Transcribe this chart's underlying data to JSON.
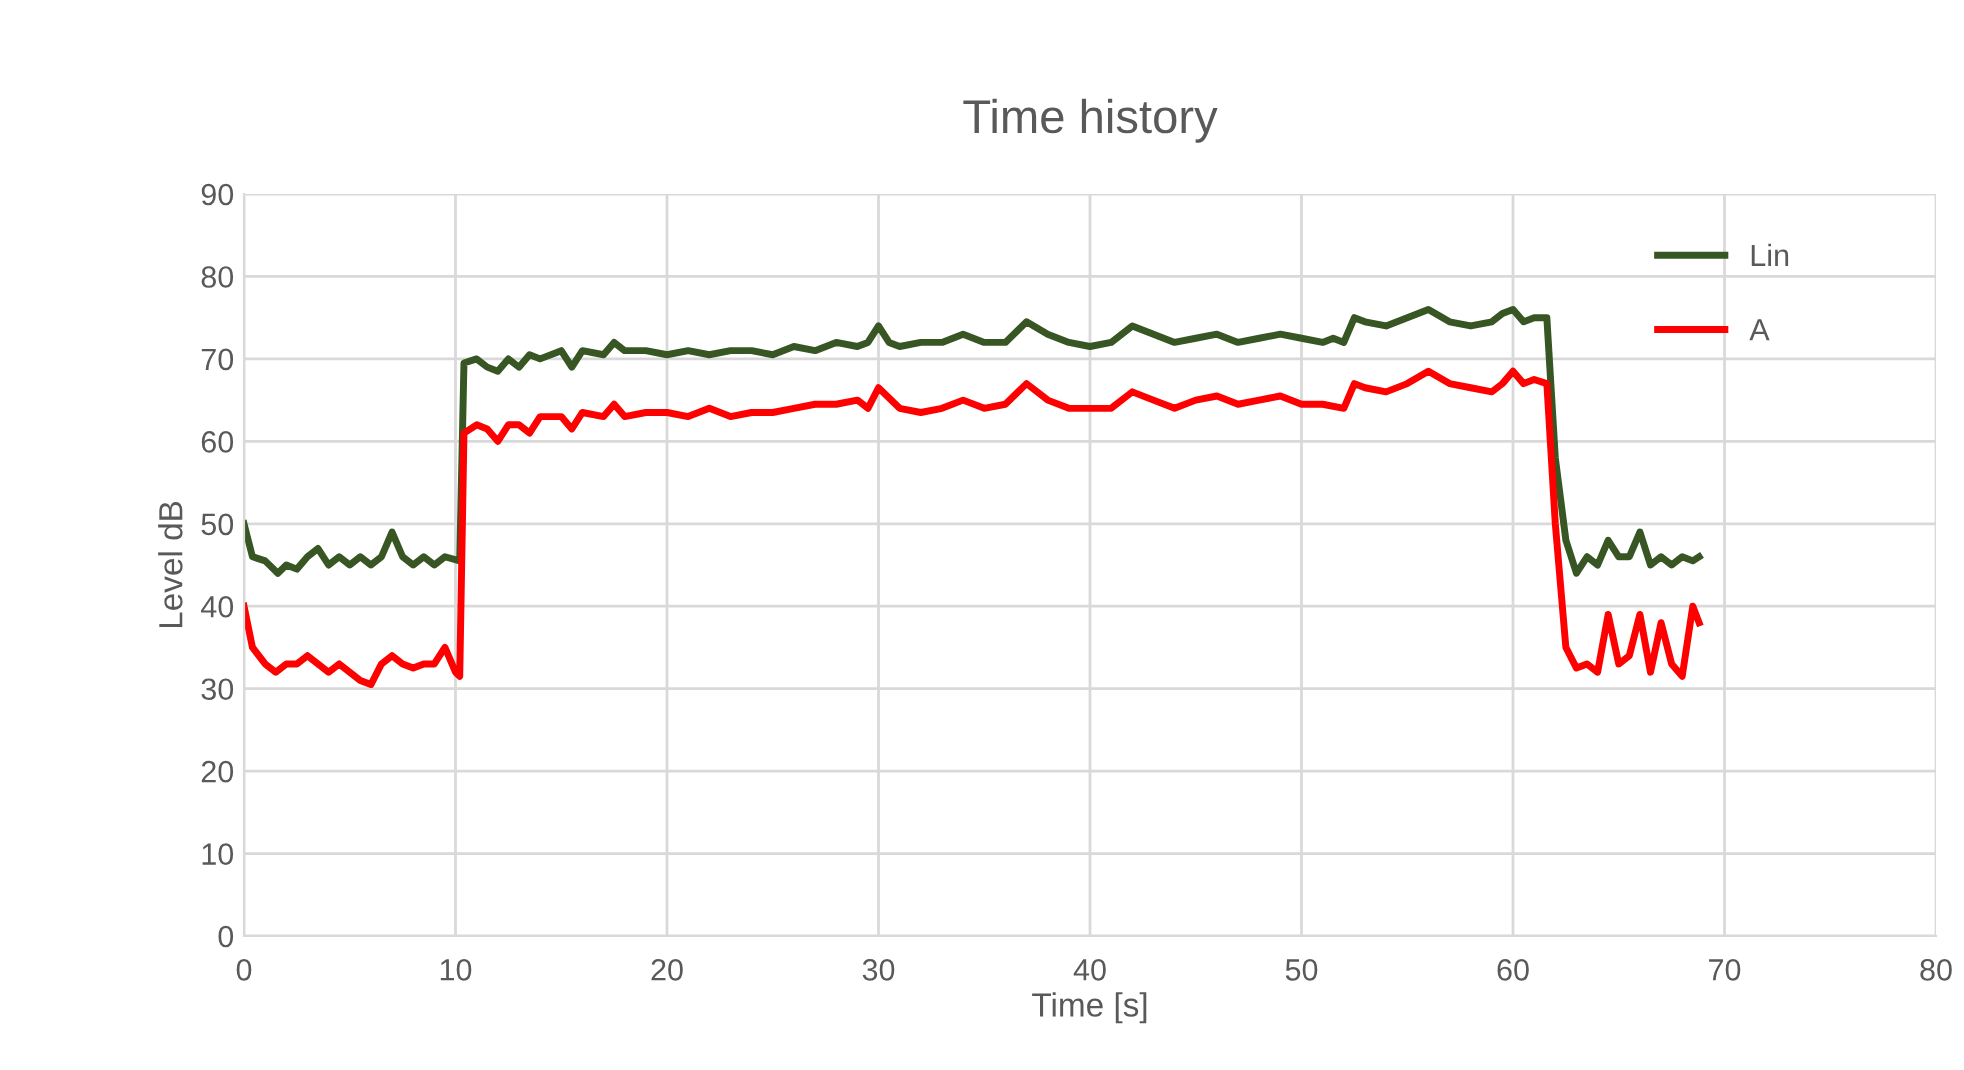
{
  "chart_data": {
    "type": "line",
    "title": "Time history",
    "xlabel": "Time [s]",
    "ylabel": "Level dB",
    "xlim": [
      0,
      80
    ],
    "xticks": [
      0,
      10,
      20,
      30,
      40,
      50,
      60,
      70,
      80
    ],
    "ylim": [
      0,
      90
    ],
    "yticks": [
      0,
      10,
      20,
      30,
      40,
      50,
      60,
      70,
      80,
      90
    ],
    "grid": true,
    "legend": "top right",
    "line_style": "solid",
    "marker": "none",
    "series": [
      {
        "name": "Lin",
        "color": "#375623",
        "x": [
          0,
          0.4,
          1,
          1.6,
          2,
          2.5,
          3,
          3.5,
          4,
          4.5,
          5,
          5.5,
          6,
          6.5,
          7,
          7.5,
          8,
          8.5,
          9,
          9.5,
          10.2,
          10.4,
          11,
          11.5,
          12,
          12.5,
          13,
          13.5,
          14,
          15,
          15.5,
          16,
          17,
          17.5,
          18,
          19,
          20,
          21,
          22,
          23,
          24,
          25,
          26,
          27,
          28,
          29,
          29.5,
          30,
          30.5,
          31,
          32,
          33,
          34,
          35,
          36,
          37,
          38,
          39,
          40,
          41,
          42,
          43,
          44,
          45,
          46,
          47,
          48,
          49,
          50,
          51,
          51.5,
          52,
          52.5,
          53,
          54,
          55,
          56,
          57,
          58,
          59,
          59.5,
          60,
          60.5,
          61,
          61.6,
          62,
          62.5,
          63,
          63.5,
          64,
          64.5,
          65,
          65.5,
          66,
          66.5,
          67,
          67.5,
          68,
          68.5,
          68.8
        ],
        "values": [
          50,
          46,
          45.5,
          44,
          45,
          44.5,
          46,
          47,
          45,
          46,
          45,
          46,
          45,
          46,
          49,
          46,
          45,
          46,
          45,
          46,
          45.5,
          69.5,
          70,
          69,
          68.5,
          70,
          69,
          70.5,
          70,
          71,
          69,
          71,
          70.5,
          72,
          71,
          71,
          70.5,
          71,
          70.5,
          71,
          71,
          70.5,
          71.5,
          71,
          72,
          71.5,
          72,
          74,
          72,
          71.5,
          72,
          72,
          73,
          72,
          72,
          74.5,
          73,
          72,
          71.5,
          72,
          74,
          73,
          72,
          72.5,
          73,
          72,
          72.5,
          73,
          72.5,
          72,
          72.5,
          72,
          75,
          74.5,
          74,
          75,
          76,
          74.5,
          74,
          74.5,
          75.5,
          76,
          74.5,
          75,
          75,
          58,
          48,
          44,
          46,
          45,
          48,
          46,
          46,
          49,
          45,
          46,
          45,
          46,
          45.5,
          46
        ]
      },
      {
        "name": "A",
        "color": "#ff0000",
        "x": [
          0,
          0.4,
          1,
          1.5,
          2,
          2.5,
          3,
          3.5,
          4,
          4.5,
          5,
          5.5,
          6,
          6.5,
          7,
          7.5,
          8,
          8.5,
          9,
          9.5,
          10,
          10.2,
          10.4,
          11,
          11.5,
          12,
          12.5,
          13,
          13.5,
          14,
          15,
          15.5,
          16,
          17,
          17.5,
          18,
          19,
          20,
          21,
          22,
          23,
          24,
          25,
          26,
          27,
          28,
          29,
          29.5,
          30,
          31,
          32,
          33,
          34,
          35,
          36,
          37,
          38,
          39,
          40,
          41,
          42,
          43,
          44,
          45,
          46,
          47,
          48,
          49,
          50,
          51,
          52,
          52.5,
          53,
          54,
          55,
          56,
          57,
          58,
          59,
          59.5,
          60,
          60.5,
          61,
          61.6,
          62,
          62.5,
          63,
          63.5,
          64,
          64.5,
          65,
          65.5,
          66,
          66.5,
          67,
          67.5,
          68,
          68.5,
          68.8
        ],
        "values": [
          40,
          35,
          33,
          32,
          33,
          33,
          34,
          33,
          32,
          33,
          32,
          31,
          30.5,
          33,
          34,
          33,
          32.5,
          33,
          33,
          35,
          32,
          31.5,
          61,
          62,
          61.5,
          60,
          62,
          62,
          61,
          63,
          63,
          61.5,
          63.5,
          63,
          64.5,
          63,
          63.5,
          63.5,
          63,
          64,
          63,
          63.5,
          63.5,
          64,
          64.5,
          64.5,
          65,
          64,
          66.5,
          64,
          63.5,
          64,
          65,
          64,
          64.5,
          67,
          65,
          64,
          64,
          64,
          66,
          65,
          64,
          65,
          65.5,
          64.5,
          65,
          65.5,
          64.5,
          64.5,
          64,
          67,
          66.5,
          66,
          67,
          68.5,
          67,
          66.5,
          66,
          67,
          68.5,
          67,
          67.5,
          67,
          50,
          35,
          32.5,
          33,
          32,
          39,
          33,
          34,
          39,
          32,
          38,
          33,
          31.5,
          40,
          38
        ]
      }
    ]
  }
}
